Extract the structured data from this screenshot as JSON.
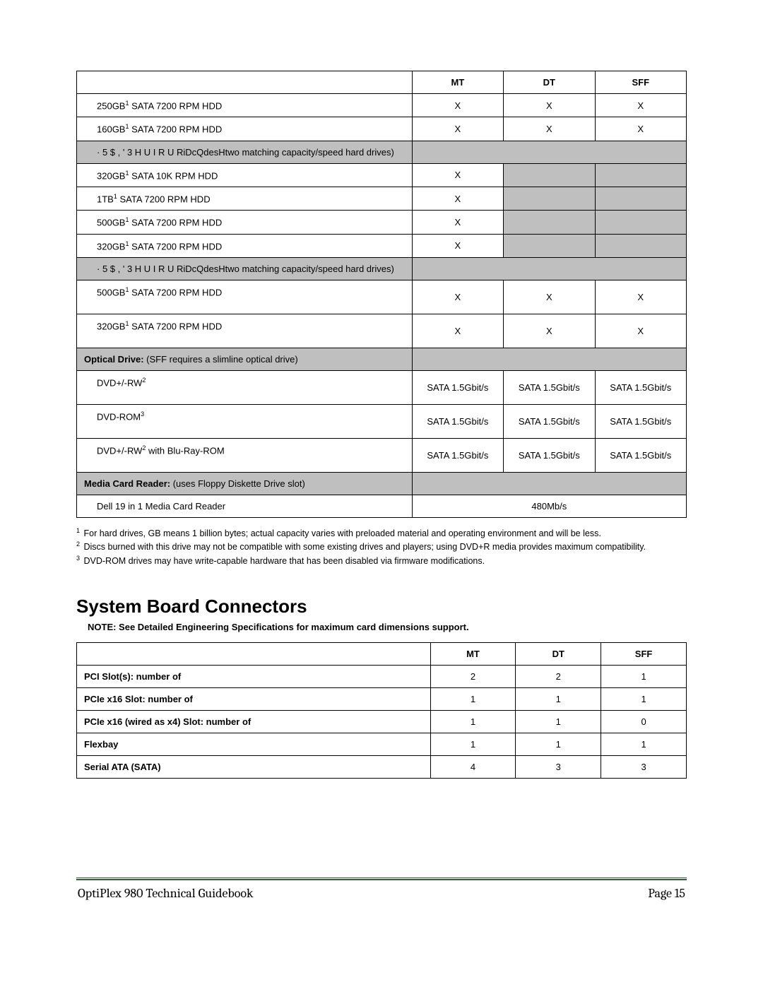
{
  "table1": {
    "headers": {
      "mt": "MT",
      "dt": "DT",
      "sff": "SFF"
    },
    "rows": [
      {
        "type": "data",
        "label_pre": "250GB",
        "sup": "1",
        "label_post": " SATA 7200 RPM HDD",
        "mt": "X",
        "dt": "X",
        "sff": "X"
      },
      {
        "type": "data",
        "label_pre": "160GB",
        "sup": "1",
        "label_post": " SATA 7200 RPM HDD",
        "mt": "X",
        "dt": "X",
        "sff": "X"
      },
      {
        "type": "section",
        "label": "· 5 $ , '   3 H U I R U RiDcQdesHtwo matching capacity/speed hard drives)"
      },
      {
        "type": "data-grey",
        "label_pre": "320GB",
        "sup": "1",
        "label_post": " SATA 10K RPM HDD",
        "mt": "X",
        "dt": "",
        "sff": ""
      },
      {
        "type": "data-grey",
        "label_pre": "1TB",
        "sup": "1",
        "label_post": " SATA 7200 RPM HDD",
        "mt": "X",
        "dt": "",
        "sff": ""
      },
      {
        "type": "data-grey",
        "label_pre": "500GB",
        "sup": "1",
        "label_post": " SATA 7200 RPM HDD",
        "mt": "X",
        "dt": "",
        "sff": ""
      },
      {
        "type": "data-grey",
        "label_pre": "320GB",
        "sup": "1",
        "label_post": " SATA 7200 RPM HDD",
        "mt": "X",
        "dt": "",
        "sff": ""
      },
      {
        "type": "section",
        "label": "· 5 $ , '   3 H U I R U RiDcQdesHtwo matching capacity/speed hard drives)"
      },
      {
        "type": "data-tall",
        "label_pre": "500GB",
        "sup": "1",
        "label_post": " SATA 7200 RPM HDD",
        "mt": "X",
        "dt": "X",
        "sff": "X"
      },
      {
        "type": "data-tall",
        "label_pre": "320GB",
        "sup": "1",
        "label_post": " SATA 7200 RPM HDD",
        "mt": "X",
        "dt": "X",
        "sff": "X"
      },
      {
        "type": "optical-header",
        "bold": "Optical Drive:",
        "rest": "   (SFF requires a slimline optical drive)"
      },
      {
        "type": "data-tall",
        "label_pre": "DVD+/-RW",
        "sup": "2",
        "label_post": "",
        "mt": "SATA 1.5Gbit/s",
        "dt": "SATA 1.5Gbit/s",
        "sff": "SATA 1.5Gbit/s"
      },
      {
        "type": "data-tall",
        "label_pre": "DVD-ROM",
        "sup": "3",
        "label_post": "",
        "mt": "SATA 1.5Gbit/s",
        "dt": "SATA 1.5Gbit/s",
        "sff": "SATA 1.5Gbit/s"
      },
      {
        "type": "data-tall",
        "label_pre": "DVD+/-RW",
        "sup": "2",
        "label_post": " with Blu-Ray-ROM",
        "mt": "SATA 1.5Gbit/s",
        "dt": "SATA 1.5Gbit/s",
        "sff": "SATA 1.5Gbit/s"
      },
      {
        "type": "optical-header",
        "bold": "Media Card Reader:",
        "rest": "   (uses Floppy Diskette Drive slot)"
      },
      {
        "type": "data-merged",
        "label_pre": "Dell 19 in 1 Media Card Reader",
        "sup": "",
        "label_post": "",
        "merged": "480Mb/s"
      }
    ]
  },
  "footnotes": {
    "f1": " For hard drives, GB means 1 billion bytes; actual capacity varies with preloaded material and operating environment and will be less.",
    "f2": " Discs burned with this drive may not be compatible with some existing drives and players; using DVD+R media provides maximum compatibility.",
    "f3": " DVD-ROM drives may have write-capable hardware that has been disabled via firmware modifications."
  },
  "section2": {
    "title": "System Board Connectors",
    "note": "NOTE: See Detailed Engineering Specifications for maximum card dimensions support.",
    "headers": {
      "mt": "MT",
      "dt": "DT",
      "sff": "SFF"
    },
    "rows": [
      {
        "label": "PCI Slot(s): number of",
        "mt": "2",
        "dt": "2",
        "sff": "1"
      },
      {
        "label": "PCIe x16 Slot: number of",
        "mt": "1",
        "dt": "1",
        "sff": "1"
      },
      {
        "label": "PCIe x16 (wired as x4) Slot: number of",
        "mt": "1",
        "dt": "1",
        "sff": "0"
      },
      {
        "label": "Flexbay",
        "mt": "1",
        "dt": "1",
        "sff": "1"
      },
      {
        "label": "Serial ATA (SATA)",
        "mt": "4",
        "dt": "3",
        "sff": "3"
      }
    ]
  },
  "footer": {
    "left": "OptiPlex 980 Technical Guidebook",
    "right": "Page 15"
  }
}
